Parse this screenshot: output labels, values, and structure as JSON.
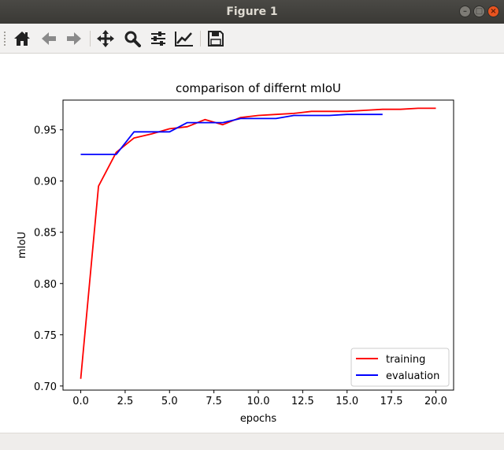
{
  "window": {
    "title": "Figure 1"
  },
  "toolbar": {
    "tools": [
      "home-icon",
      "back-arrow-icon",
      "forward-arrow-icon",
      "pan-move-icon",
      "zoom-magnifier-icon",
      "subplots-sliders-icon",
      "edit-axis-chart-icon",
      "save-floppy-icon"
    ]
  },
  "chart_data": {
    "type": "line",
    "title": "comparison of differnt mIoU",
    "xlabel": "epochs",
    "ylabel": "mIoU",
    "xlim": [
      -1.0,
      21.0
    ],
    "ylim": [
      0.696,
      0.979
    ],
    "xticks": [
      0.0,
      2.5,
      5.0,
      7.5,
      10.0,
      12.5,
      15.0,
      17.5,
      20.0
    ],
    "xtick_labels": [
      "0.0",
      "2.5",
      "5.0",
      "7.5",
      "10.0",
      "12.5",
      "15.0",
      "17.5",
      "20.0"
    ],
    "yticks": [
      0.7,
      0.75,
      0.8,
      0.85,
      0.9,
      0.95
    ],
    "ytick_labels": [
      "0.70",
      "0.75",
      "0.80",
      "0.85",
      "0.90",
      "0.95"
    ],
    "grid": false,
    "legend": {
      "position": "lower-right"
    },
    "series": [
      {
        "name": "training",
        "color": "#ff0000",
        "x": [
          0,
          1,
          2,
          3,
          4,
          5,
          6,
          7,
          8,
          9,
          10,
          11,
          12,
          13,
          14,
          15,
          16,
          17,
          18,
          19,
          20
        ],
        "y": [
          0.707,
          0.895,
          0.928,
          0.942,
          0.946,
          0.951,
          0.953,
          0.96,
          0.955,
          0.962,
          0.964,
          0.965,
          0.966,
          0.968,
          0.968,
          0.968,
          0.969,
          0.97,
          0.97,
          0.971,
          0.971
        ]
      },
      {
        "name": "evaluation",
        "color": "#0000ff",
        "x": [
          0,
          1,
          2,
          3,
          4,
          5,
          6,
          7,
          8,
          9,
          10,
          11,
          12,
          13,
          14,
          15,
          16,
          17
        ],
        "y": [
          0.926,
          0.926,
          0.926,
          0.948,
          0.948,
          0.948,
          0.957,
          0.957,
          0.957,
          0.961,
          0.961,
          0.961,
          0.964,
          0.964,
          0.964,
          0.965,
          0.965,
          0.965
        ]
      }
    ]
  }
}
